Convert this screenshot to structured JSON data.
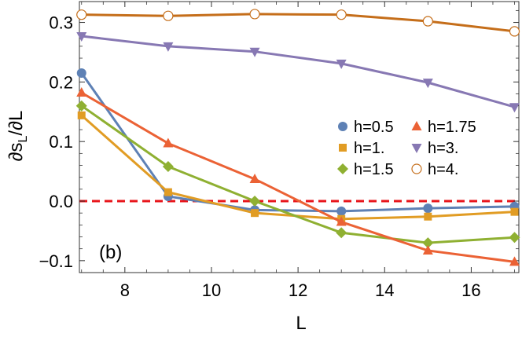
{
  "chart_data": {
    "type": "line",
    "panel_label": "(b)",
    "xlabel": "L",
    "ylabel_main": "∂s",
    "ylabel_sub": "L",
    "ylabel_tail": "/∂L",
    "xlim": [
      6.95,
      17.1
    ],
    "ylim": [
      -0.12,
      0.335
    ],
    "xticks": [
      8,
      10,
      12,
      14,
      16
    ],
    "xtick_labels": [
      "8",
      "10",
      "12",
      "14",
      "16"
    ],
    "yticks": [
      -0.1,
      0.0,
      0.1,
      0.2,
      0.3
    ],
    "ytick_labels": [
      "−0.1",
      "0.0",
      "0.1",
      "0.2",
      "0.3"
    ],
    "zero_line_color": "#e8151b",
    "x": [
      7,
      9,
      11,
      13,
      15,
      17
    ],
    "series": [
      {
        "name": "h=0.5",
        "marker": "circle",
        "color": "#5e81b5",
        "values": [
          0.215,
          0.008,
          -0.015,
          -0.017,
          -0.012,
          -0.009
        ]
      },
      {
        "name": "h=1.",
        "marker": "square",
        "color": "#e19c24",
        "values": [
          0.144,
          0.015,
          -0.02,
          -0.03,
          -0.026,
          -0.018
        ]
      },
      {
        "name": "h=1.5",
        "marker": "diamond",
        "color": "#8fb032",
        "values": [
          0.16,
          0.058,
          0.0,
          -0.053,
          -0.07,
          -0.061
        ]
      },
      {
        "name": "h=1.75",
        "marker": "triangle-up",
        "color": "#eb6235",
        "values": [
          0.182,
          0.097,
          0.037,
          -0.035,
          -0.083,
          -0.102
        ]
      },
      {
        "name": "h=3.",
        "marker": "triangle-down",
        "color": "#8778b3",
        "values": [
          0.277,
          0.26,
          0.251,
          0.231,
          0.199,
          0.158
        ]
      },
      {
        "name": "h=4.",
        "marker": "open-circle",
        "color": "#c56e1a",
        "values": [
          0.313,
          0.311,
          0.314,
          0.313,
          0.302,
          0.285
        ]
      }
    ],
    "legend": {
      "placement": "middle-right",
      "columns": [
        [
          "h=0.5",
          "h=1.",
          "h=1.5"
        ],
        [
          "h=1.75",
          "h=3.",
          "h=4."
        ]
      ]
    }
  }
}
